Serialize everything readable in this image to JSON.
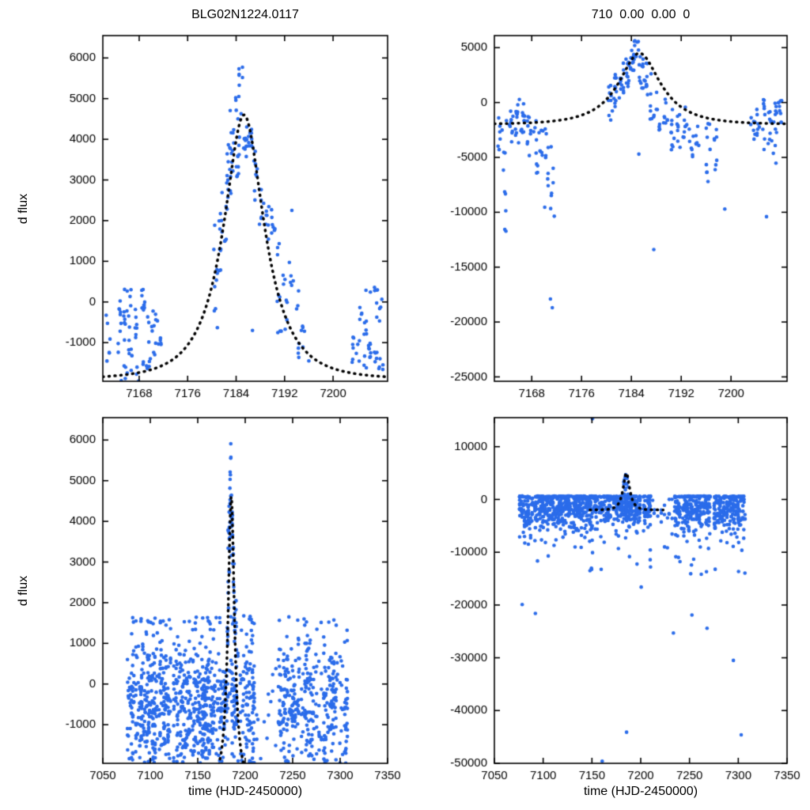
{
  "figure": {
    "bg": "#ffffff",
    "marker_color": "#2b6cea",
    "curve_color": "#000000",
    "axis_color": "#000000"
  },
  "chart_data": [
    {
      "id": "top-left",
      "type": "scatter",
      "title": "BLG02N1224.0117",
      "xlabel": "",
      "ylabel": "d flux",
      "xlim": [
        7162,
        7209
      ],
      "ylim": [
        -1950,
        6550
      ],
      "xticks": [
        7168,
        7176,
        7184,
        7192,
        7200
      ],
      "yticks": [
        6000,
        5000,
        4000,
        3000,
        2000,
        1000,
        0,
        -1000
      ],
      "layout": {
        "rect": {
          "l": 130,
          "t": 45,
          "r": 490,
          "b": 482
        },
        "grid": false
      },
      "model": {
        "t0": 7185.3,
        "tE": 7,
        "u0": 0.5,
        "base": -1900,
        "peak": 4600,
        "x0": 7162,
        "x1": 7209
      },
      "clusters": [
        [
          7162.9,
          6,
          -1600,
          150
        ],
        [
          7164.7,
          10,
          -1950,
          120
        ],
        [
          7165.7,
          13,
          -1900,
          680
        ],
        [
          7166.6,
          12,
          -1700,
          320
        ],
        [
          7167.6,
          10,
          -1950,
          200
        ],
        [
          7168.6,
          11,
          -1600,
          360
        ],
        [
          7169.5,
          8,
          -1900,
          -350
        ],
        [
          7170.4,
          9,
          -1500,
          160
        ],
        [
          7171.3,
          6,
          -1250,
          -80
        ],
        [
          7180.6,
          9,
          -650,
          1900
        ],
        [
          7181.5,
          11,
          300,
          3000
        ],
        [
          7182.4,
          13,
          1400,
          3900
        ],
        [
          7183.3,
          15,
          2600,
          4800
        ],
        [
          7184.2,
          15,
          3000,
          5250
        ],
        [
          7184.8,
          7,
          4500,
          5950
        ],
        [
          7185.6,
          11,
          2900,
          4700
        ],
        [
          7186.4,
          9,
          3600,
          4350
        ],
        [
          7187.3,
          8,
          2500,
          3900
        ],
        [
          7188.2,
          7,
          1800,
          3200
        ],
        [
          7189.1,
          7,
          1300,
          2400
        ],
        [
          7190.1,
          7,
          1350,
          2300
        ],
        [
          7191.1,
          9,
          -1300,
          1500
        ],
        [
          7192.1,
          7,
          -800,
          700
        ],
        [
          7193.1,
          5,
          -100,
          1100
        ],
        [
          7194.1,
          7,
          -1500,
          400
        ],
        [
          7195.1,
          5,
          -1250,
          -250
        ],
        [
          7203.5,
          7,
          -1750,
          -700
        ],
        [
          7204.4,
          7,
          -1500,
          60
        ],
        [
          7205.3,
          9,
          -1800,
          300
        ],
        [
          7206.2,
          9,
          -1400,
          420
        ],
        [
          7207.1,
          11,
          -1900,
          380
        ],
        [
          7207.9,
          9,
          -1700,
          150
        ]
      ],
      "outliers": [
        [
          7186.7,
          -700
        ],
        [
          7193.2,
          2250
        ],
        [
          7196.0,
          -1450
        ]
      ]
    },
    {
      "id": "top-right",
      "type": "scatter",
      "title": "710  0.00  0.00  0",
      "xlabel": "",
      "ylabel": "",
      "xlim": [
        7162,
        7209
      ],
      "ylim": [
        -25400,
        6100
      ],
      "xticks": [
        7168,
        7176,
        7184,
        7192,
        7200
      ],
      "yticks": [
        5000,
        0,
        -5000,
        -10000,
        -15000,
        -20000,
        -25000
      ],
      "layout": {
        "rect": {
          "l": 625,
          "t": 45,
          "r": 995,
          "b": 482
        },
        "grid": false
      },
      "model": {
        "t0": 7185.3,
        "tE": 7,
        "u0": 0.5,
        "base": -2000,
        "peak": 4500,
        "x0": 7162,
        "x1": 7209
      },
      "clusters": [
        [
          7162.9,
          7,
          -4500,
          -300
        ],
        [
          7163.6,
          9,
          -12000,
          -600
        ],
        [
          7164.7,
          9,
          -3600,
          -700
        ],
        [
          7165.7,
          11,
          -4200,
          300
        ],
        [
          7166.6,
          11,
          -3200,
          500
        ],
        [
          7167.6,
          9,
          -5600,
          -900
        ],
        [
          7168.6,
          9,
          -6600,
          -1400
        ],
        [
          7169.5,
          7,
          -5200,
          -1900
        ],
        [
          7170.4,
          9,
          -9800,
          -2300
        ],
        [
          7171.3,
          7,
          -10800,
          -2600
        ],
        [
          7180.6,
          9,
          -1600,
          1700
        ],
        [
          7181.5,
          11,
          -600,
          2700
        ],
        [
          7182.4,
          12,
          400,
          3600
        ],
        [
          7183.3,
          13,
          1300,
          4700
        ],
        [
          7184.2,
          13,
          1800,
          5600
        ],
        [
          7184.8,
          6,
          3400,
          6000
        ],
        [
          7185.6,
          11,
          1300,
          4600
        ],
        [
          7186.4,
          9,
          300,
          3900
        ],
        [
          7187.3,
          8,
          -1600,
          3100
        ],
        [
          7188.2,
          7,
          -2600,
          1600
        ],
        [
          7189.5,
          8,
          -3200,
          500
        ],
        [
          7190.6,
          9,
          -4600,
          -400
        ],
        [
          7191.6,
          8,
          -4200,
          -900
        ],
        [
          7192.6,
          8,
          -3600,
          -100
        ],
        [
          7193.6,
          7,
          -5200,
          -1300
        ],
        [
          7194.6,
          6,
          -4600,
          -1900
        ],
        [
          7196.3,
          9,
          -7600,
          -1400
        ],
        [
          7197.4,
          7,
          -6200,
          -900
        ],
        [
          7203.5,
          7,
          -3600,
          -400
        ],
        [
          7204.4,
          7,
          -3100,
          100
        ],
        [
          7205.3,
          9,
          -4600,
          300
        ],
        [
          7206.2,
          9,
          -4100,
          500
        ],
        [
          7207.1,
          11,
          -5600,
          400
        ],
        [
          7207.9,
          9,
          -3100,
          250
        ]
      ],
      "outliers": [
        [
          7171.0,
          -17900
        ],
        [
          7171.3,
          -18700
        ],
        [
          7187.6,
          -13400
        ],
        [
          7199.0,
          -9700
        ],
        [
          7205.7,
          -10400
        ],
        [
          7185.2,
          -4700
        ]
      ]
    },
    {
      "id": "bottom-left",
      "type": "scatter",
      "title": "",
      "xlabel": "time (HJD-2450000)",
      "ylabel": "d flux",
      "xlim": [
        7050,
        7350
      ],
      "ylim": [
        -1950,
        6550
      ],
      "xticks": [
        7050,
        7100,
        7150,
        7200,
        7250,
        7300,
        7350
      ],
      "yticks": [
        6000,
        5000,
        4000,
        3000,
        2000,
        1000,
        0,
        -1000
      ],
      "layout": {
        "rect": {
          "l": 130,
          "t": 528,
          "r": 490,
          "b": 965
        },
        "grid": false
      },
      "model": {
        "t0": 7185.3,
        "tE": 7,
        "u0": 0.5,
        "base": -2350,
        "peak": 4600,
        "x0": 7160,
        "x1": 7212
      },
      "clusters": [
        [
          7181.4,
          6,
          0,
          2800
        ],
        [
          7182.3,
          7,
          1500,
          3900
        ],
        [
          7183.2,
          8,
          2600,
          4800
        ],
        [
          7184.1,
          8,
          3200,
          5250
        ],
        [
          7184.7,
          5,
          4600,
          5950
        ],
        [
          7185.5,
          7,
          2900,
          4700
        ],
        [
          7186.4,
          6,
          3500,
          4300
        ],
        [
          7187.3,
          5,
          2400,
          3800
        ],
        [
          7188.2,
          4,
          1700,
          3000
        ],
        [
          7189.2,
          4,
          1200,
          2300
        ],
        [
          7190.2,
          4,
          1300,
          2200
        ]
      ],
      "bands": [
        [
          7076,
          7210,
          1.05,
          3,
          12,
          -480,
          720,
          -1950,
          1680
        ],
        [
          7212,
          7233,
          2.6,
          1,
          3,
          -850,
          520,
          -1900,
          420
        ],
        [
          7235,
          7308,
          1.05,
          3,
          10,
          -530,
          700,
          -1950,
          1620
        ]
      ],
      "outliers": [
        [
          7246,
          1650
        ],
        [
          7262,
          1600
        ],
        [
          7105,
          1620
        ],
        [
          7120,
          1580
        ]
      ]
    },
    {
      "id": "bottom-right",
      "type": "scatter",
      "title": "",
      "xlabel": "time (HJD-2450000)",
      "ylabel": "",
      "xlim": [
        7050,
        7350
      ],
      "ylim": [
        -50000,
        15500
      ],
      "xticks": [
        7050,
        7100,
        7150,
        7200,
        7250,
        7300,
        7350
      ],
      "yticks": [
        10000,
        0,
        -10000,
        -20000,
        -30000,
        -40000,
        -50000
      ],
      "layout": {
        "rect": {
          "l": 625,
          "t": 528,
          "r": 995,
          "b": 965
        },
        "grid": false
      },
      "model": {
        "t0": 7185.3,
        "tE": 7,
        "u0": 0.5,
        "base": -2000,
        "peak": 5000,
        "x0": 7148,
        "x1": 7223
      },
      "clusters": [
        [
          7183.0,
          6,
          800,
          4300
        ],
        [
          7184.4,
          6,
          1800,
          5700
        ],
        [
          7185.8,
          5,
          600,
          4600
        ],
        [
          7187.2,
          4,
          -400,
          3100
        ]
      ],
      "bands": [
        [
          7076,
          7210,
          1.05,
          4,
          12,
          -1500,
          2000,
          -13600,
          650
        ],
        [
          7212,
          7233,
          2.6,
          1,
          3,
          -2600,
          1600,
          -9200,
          100
        ],
        [
          7235,
          7308,
          1.05,
          4,
          11,
          -1650,
          2200,
          -14200,
          650
        ]
      ],
      "outliers": [
        [
          7150.5,
          15300
        ],
        [
          7160.5,
          -49600
        ],
        [
          7185.5,
          -44100
        ],
        [
          7303.0,
          -44600
        ],
        [
          7252.5,
          -21900
        ],
        [
          7268.0,
          -24400
        ],
        [
          7233.5,
          -25300
        ],
        [
          7200.5,
          -16600
        ],
        [
          7148.0,
          -13500
        ],
        [
          7092.0,
          -21600
        ],
        [
          7078.5,
          -19900
        ],
        [
          7295.0,
          -30500
        ]
      ]
    }
  ]
}
